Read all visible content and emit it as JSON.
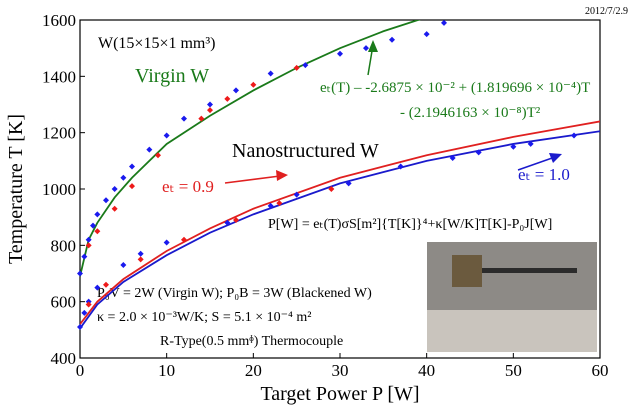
{
  "chart_data": {
    "type": "scatter",
    "date": "2012/7/2.9",
    "x_label": "Target Power P [W]",
    "y_label": "Temperature T [K]",
    "xlim": [
      0,
      60
    ],
    "xticks": [
      0,
      10,
      20,
      30,
      40,
      50,
      60
    ],
    "ylim": [
      400,
      1600
    ],
    "yticks": [
      400,
      600,
      800,
      1000,
      1200,
      1400,
      1600
    ],
    "annotations": {
      "sample": "W(15×15×1 mm³)",
      "virgin": "Virgin W",
      "nano": "Nanostructured W",
      "et09": "eₜ = 0.9",
      "et10": "eₜ = 1.0",
      "fit1": "eₜ(T) – -2.6875 × 10⁻² + (1.819696 × 10⁻⁴)T",
      "fit2": "- (2.1946163 × 10⁻⁸)T²",
      "balance": "P[W] = eₜ(T)σS[m²]{T[K]}⁴+κ[W/K]T[K]-P₀J[W]",
      "p0": "P₀V = 2W (Virgin W); P₀B = 3W (Blackened W)",
      "kappa": "κ = 2.0 × 10⁻³W/K; S = 5.1 × 10⁻⁴ m²",
      "tc": "R-Type(0.5 mmᶲ) Thermocouple"
    },
    "curves": [
      {
        "color": "#1a7a1a",
        "x": [
          0,
          1,
          2,
          4,
          6,
          10,
          15,
          20,
          25,
          30,
          35,
          40
        ],
        "values": [
          690,
          820,
          880,
          970,
          1040,
          1160,
          1260,
          1350,
          1430,
          1500,
          1560,
          1610
        ]
      },
      {
        "color": "#e02020",
        "x": [
          0,
          2,
          5,
          10,
          15,
          20,
          30,
          40,
          50,
          60
        ],
        "values": [
          520,
          600,
          680,
          780,
          860,
          930,
          1040,
          1120,
          1185,
          1240
        ]
      },
      {
        "color": "#1a1acc",
        "x": [
          0,
          2,
          5,
          10,
          15,
          20,
          30,
          40,
          50,
          60
        ],
        "values": [
          505,
          590,
          670,
          765,
          845,
          910,
          1020,
          1100,
          1160,
          1205
        ]
      }
    ],
    "series": [
      {
        "color": "#1a1aee",
        "x": [
          0,
          0.5,
          1,
          1.5,
          2,
          3,
          4,
          5,
          6,
          8,
          10,
          12,
          15,
          18,
          22,
          26,
          30,
          33,
          36,
          40,
          42
        ],
        "values": [
          700,
          760,
          820,
          870,
          910,
          960,
          1000,
          1040,
          1080,
          1140,
          1190,
          1250,
          1300,
          1350,
          1410,
          1440,
          1480,
          1500,
          1530,
          1550,
          1590
        ]
      },
      {
        "color": "#ee1a1a",
        "x": [
          1,
          2,
          4,
          6,
          9,
          14,
          15,
          17,
          20,
          25
        ],
        "values": [
          800,
          850,
          930,
          1010,
          1120,
          1250,
          1280,
          1320,
          1370,
          1430
        ]
      },
      {
        "color": "#1a1aee",
        "x": [
          0,
          0.5,
          1,
          2,
          5,
          7,
          10,
          17,
          22,
          25,
          31,
          37,
          43,
          46,
          50,
          52,
          57
        ],
        "values": [
          510,
          560,
          600,
          650,
          730,
          770,
          810,
          880,
          940,
          980,
          1020,
          1080,
          1110,
          1130,
          1150,
          1160,
          1190
        ]
      },
      {
        "color": "#ee1a1a",
        "x": [
          1,
          3,
          7,
          12,
          18,
          23,
          29
        ],
        "values": [
          590,
          660,
          750,
          820,
          890,
          950,
          1000
        ]
      }
    ]
  }
}
